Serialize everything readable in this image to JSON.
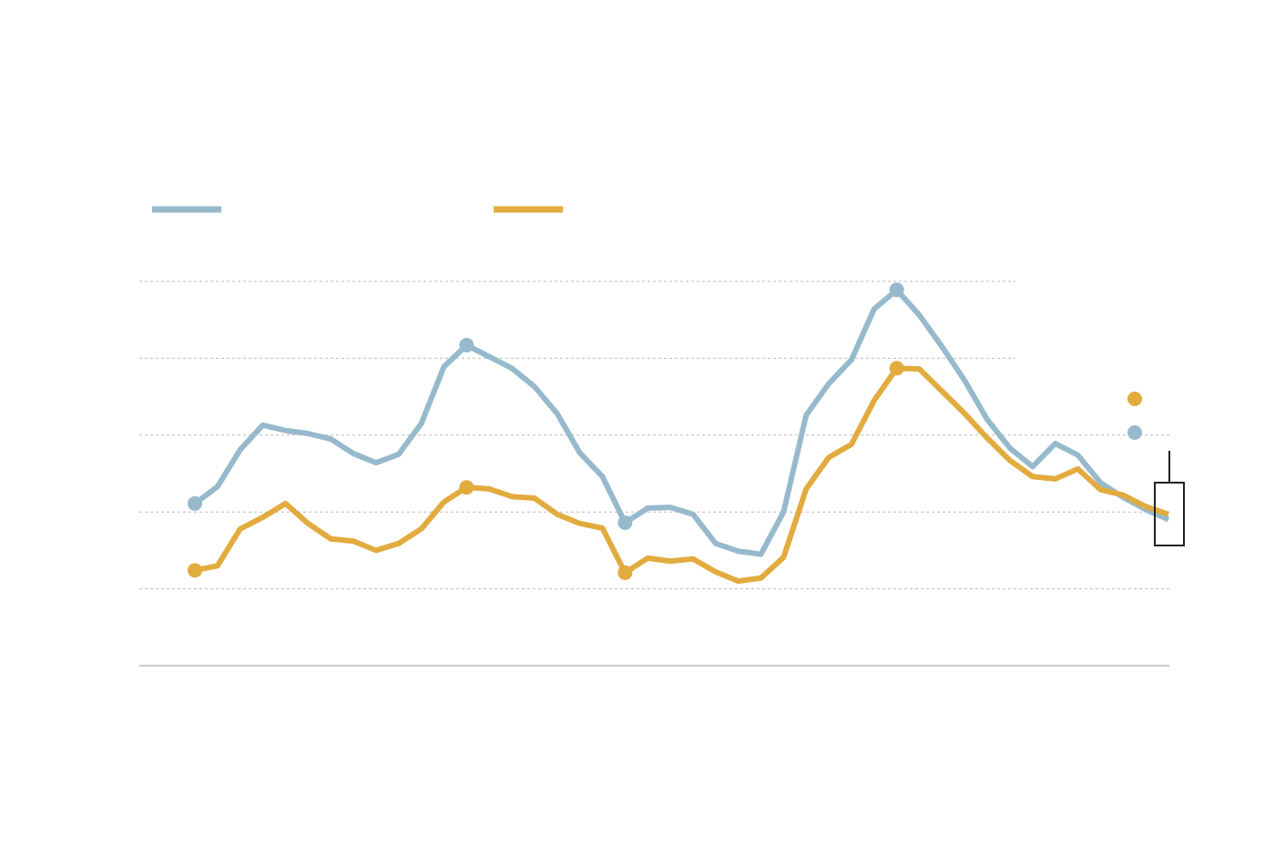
{
  "chart_data": {
    "type": "line",
    "x": [
      0,
      1,
      2,
      3,
      4,
      5,
      6,
      7,
      8,
      9,
      10,
      11,
      12,
      13,
      14,
      15,
      16,
      17,
      18,
      19,
      20,
      21,
      22,
      23,
      24,
      25,
      26,
      27,
      28,
      29,
      30,
      31,
      32,
      33,
      34,
      35,
      36,
      37,
      38,
      39,
      40,
      41,
      42,
      43
    ],
    "series": [
      {
        "color": "#97b9cc",
        "highlight": [
          0,
          12,
          19,
          31
        ],
        "values": [
          2.11,
          2.33,
          2.81,
          3.13,
          3.06,
          3.02,
          2.95,
          2.76,
          2.64,
          2.75,
          3.15,
          3.89,
          4.17,
          4.02,
          3.87,
          3.63,
          3.28,
          2.77,
          2.46,
          1.86,
          2.05,
          2.06,
          1.97,
          1.59,
          1.49,
          1.45,
          2.0,
          3.26,
          3.67,
          3.98,
          4.64,
          4.89,
          4.56,
          4.15,
          3.71,
          3.2,
          2.83,
          2.59,
          2.89,
          2.74,
          2.38,
          2.19,
          2.03,
          1.9
        ]
      },
      {
        "color": "#e2ab3e",
        "highlight": [
          0,
          12,
          19,
          31
        ],
        "values": [
          1.24,
          1.3,
          1.78,
          1.93,
          2.11,
          1.85,
          1.65,
          1.62,
          1.5,
          1.59,
          1.78,
          2.13,
          2.32,
          2.3,
          2.2,
          2.18,
          1.97,
          1.85,
          1.79,
          1.21,
          1.4,
          1.36,
          1.39,
          1.22,
          1.1,
          1.14,
          1.41,
          2.3,
          2.71,
          2.88,
          3.45,
          3.87,
          3.86,
          3.57,
          3.28,
          2.96,
          2.67,
          2.46,
          2.43,
          2.56,
          2.29,
          2.22,
          2.07,
          1.97
        ]
      }
    ],
    "xlim": [
      0,
      43
    ],
    "ylim": [
      0,
      5
    ],
    "yticks": [
      1,
      2,
      3,
      4,
      5
    ],
    "grid": true
  }
}
